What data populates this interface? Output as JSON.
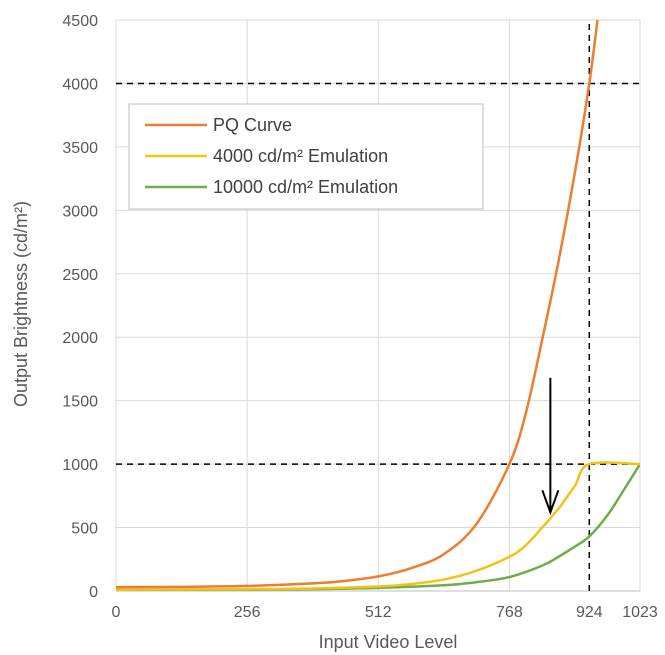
{
  "chart_data": {
    "type": "line",
    "xlabel": "Input Video Level",
    "ylabel": "Output Brightness (cd/m²)",
    "xlim": [
      0,
      1023
    ],
    "ylim": [
      0,
      4500
    ],
    "x_ticks": [
      0,
      256,
      512,
      768,
      924,
      1023
    ],
    "y_ticks": [
      0,
      500,
      1000,
      1500,
      2000,
      2500,
      3000,
      3500,
      4000,
      4500
    ],
    "grid": true,
    "legend_position": "upper-left",
    "reference_lines": [
      {
        "axis": "y",
        "value": 4000,
        "style": "dashed"
      },
      {
        "axis": "y",
        "value": 1000,
        "style": "dashed"
      },
      {
        "axis": "x",
        "value": 924,
        "style": "dashed"
      }
    ],
    "annotation": {
      "type": "arrow",
      "direction": "down",
      "from": [
        848,
        1680
      ],
      "to": [
        848,
        620
      ]
    },
    "series": [
      {
        "name": "PQ Curve",
        "color": "#ED7D31",
        "x": [
          0,
          128,
          256,
          384,
          448,
          512,
          576,
          640,
          704,
          768,
          800,
          832,
          864,
          896,
          924,
          940
        ],
        "y": [
          30,
          33,
          40,
          60,
          80,
          115,
          180,
          290,
          530,
          1000,
          1400,
          1980,
          2600,
          3300,
          4000,
          4500
        ]
      },
      {
        "name": "4000 cd/m² Emulation",
        "color": "#F2C314",
        "x": [
          0,
          256,
          384,
          512,
          576,
          640,
          704,
          768,
          800,
          832,
          864,
          896,
          924,
          1023
        ],
        "y": [
          10,
          15,
          20,
          35,
          55,
          90,
          160,
          270,
          360,
          500,
          650,
          830,
          1000,
          1000
        ]
      },
      {
        "name": "10000 cd/m² Emulation",
        "color": "#70AD47",
        "x": [
          0,
          256,
          384,
          512,
          640,
          704,
          768,
          832,
          864,
          896,
          924,
          960,
          992,
          1023
        ],
        "y": [
          10,
          12,
          15,
          25,
          45,
          70,
          110,
          200,
          270,
          350,
          430,
          600,
          800,
          1000
        ]
      }
    ]
  }
}
